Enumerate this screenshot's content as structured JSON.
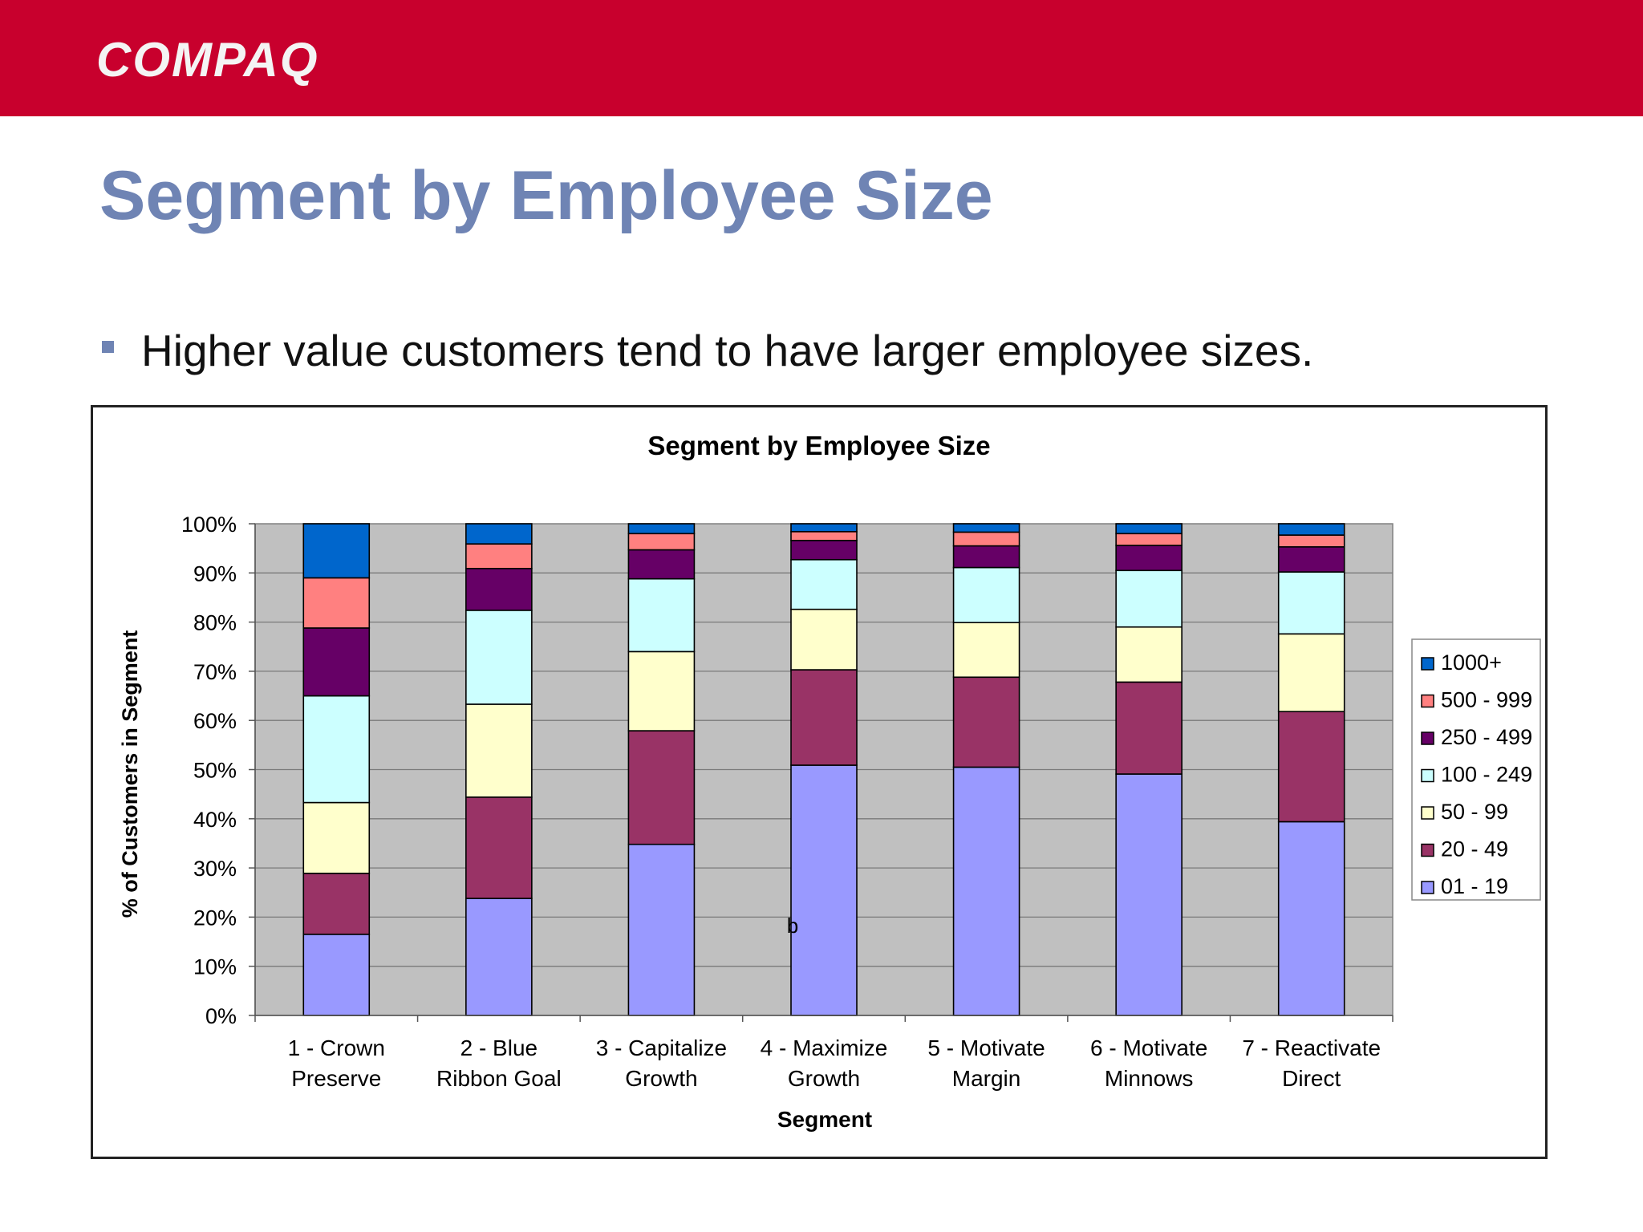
{
  "header": {
    "logo_text": "COMPAQ",
    "brand_color": "#c8002d"
  },
  "slide": {
    "title": "Segment by Employee Size",
    "bullet": "Higher value customers tend to have larger employee sizes."
  },
  "stray_text": "b",
  "chart_data": {
    "type": "bar",
    "stacked": true,
    "percent": true,
    "title": "Segment by Employee Size",
    "xlabel": "Segment",
    "ylabel": "% of Customers in Segment",
    "ylim": [
      0,
      100
    ],
    "yticks": [
      "0%",
      "10%",
      "20%",
      "30%",
      "40%",
      "50%",
      "60%",
      "70%",
      "80%",
      "90%",
      "100%"
    ],
    "categories": [
      [
        "1 - Crown",
        "Preserve"
      ],
      [
        "2 - Blue",
        "Ribbon Goal"
      ],
      [
        "3 - Capitalize",
        "Growth"
      ],
      [
        "4 - Maximize",
        "Growth"
      ],
      [
        "5 - Motivate",
        "Margin"
      ],
      [
        "6 - Motivate",
        "Minnows"
      ],
      [
        "7 - Reactivate",
        "Direct"
      ]
    ],
    "series": [
      {
        "name": "01 - 19",
        "color": "#9999ff",
        "values": [
          16.5,
          23.8,
          34.8,
          50.9,
          50.5,
          49.1,
          39.4
        ]
      },
      {
        "name": "20 - 49",
        "color": "#993366",
        "values": [
          12.4,
          20.6,
          23.1,
          19.4,
          18.3,
          18.7,
          22.4
        ]
      },
      {
        "name": "50 - 99",
        "color": "#ffffcc",
        "values": [
          14.4,
          18.9,
          16.1,
          12.3,
          11.1,
          11.2,
          15.8
        ]
      },
      {
        "name": "100 - 249",
        "color": "#ccffff",
        "values": [
          21.7,
          19.1,
          14.8,
          10.1,
          11.2,
          11.5,
          12.6
        ]
      },
      {
        "name": "250 - 499",
        "color": "#660066",
        "values": [
          13.8,
          8.5,
          5.9,
          3.9,
          4.4,
          5.1,
          5.1
        ]
      },
      {
        "name": "500 - 999",
        "color": "#ff8080",
        "values": [
          10.2,
          5.0,
          3.3,
          1.8,
          2.8,
          2.4,
          2.4
        ]
      },
      {
        "name": "1000+",
        "color": "#0066cc",
        "values": [
          11.0,
          4.1,
          2.0,
          1.6,
          1.7,
          2.0,
          2.3
        ]
      }
    ],
    "grid": true,
    "plot_background": "#c0c0c0",
    "legend_position": "right"
  }
}
